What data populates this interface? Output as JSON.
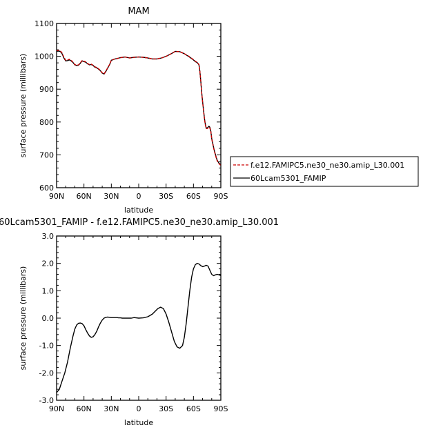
{
  "chart_data": [
    {
      "type": "line",
      "title": "MAM",
      "xlabel": "latitude",
      "ylabel": "surface pressure (millibars)",
      "x_ticks": [
        -90,
        -60,
        -30,
        0,
        30,
        60,
        90
      ],
      "x_tick_labels": [
        "90N",
        "60N",
        "30N",
        "0",
        "30S",
        "60S",
        "90S"
      ],
      "xlim": [
        -90,
        90
      ],
      "ylim": [
        600,
        1100
      ],
      "y_ticks": [
        600,
        700,
        800,
        900,
        1000,
        1100
      ],
      "y_tick_labels": [
        "600",
        "700",
        "800",
        "900",
        "1000",
        "1100"
      ],
      "legend_position": "right",
      "series": [
        {
          "name": "f.e12.FAMIPC5.ne30_ne30.amip_L30.001",
          "color": "#cc0000",
          "dash": "dashed",
          "x": [
            -90,
            -88,
            -86,
            -84,
            -82,
            -80,
            -78,
            -76,
            -74,
            -72,
            -70,
            -68,
            -66,
            -64,
            -62,
            -60,
            -58,
            -56,
            -54,
            -52,
            -50,
            -48,
            -46,
            -44,
            -42,
            -40,
            -38,
            -36,
            -34,
            -32,
            -30,
            -28,
            -26,
            -24,
            -20,
            -15,
            -10,
            -5,
            0,
            5,
            10,
            15,
            20,
            25,
            30,
            35,
            40,
            45,
            50,
            55,
            60,
            62,
            64,
            66,
            67,
            68,
            69,
            70,
            71,
            72,
            73,
            74,
            75,
            76,
            77,
            78,
            79,
            80,
            81,
            82,
            83,
            84,
            85,
            86,
            87,
            88,
            89,
            90
          ],
          "y": [
            1017,
            1018,
            1017,
            1010,
            997,
            988,
            989,
            991,
            988,
            982,
            975,
            973,
            974,
            980,
            987,
            985,
            983,
            978,
            975,
            976,
            973,
            968,
            966,
            962,
            957,
            950,
            947,
            955,
            965,
            975,
            988,
            990,
            992,
            993,
            996,
            998,
            995,
            997,
            998,
            997,
            995,
            992,
            992,
            995,
            1000,
            1007,
            1015,
            1014,
            1008,
            1000,
            990,
            985,
            982,
            975,
            955,
            925,
            890,
            860,
            835,
            810,
            792,
            780,
            780,
            782,
            785,
            782,
            770,
            748,
            735,
            722,
            710,
            700,
            690,
            682,
            677,
            673,
            670,
            668
          ]
        },
        {
          "name": "60Lcam5301_FAMIP",
          "color": "#000000",
          "dash": "solid",
          "x": [
            -90,
            -88,
            -86,
            -84,
            -82,
            -80,
            -78,
            -76,
            -74,
            -72,
            -70,
            -68,
            -66,
            -64,
            -62,
            -60,
            -58,
            -56,
            -54,
            -52,
            -50,
            -48,
            -46,
            -44,
            -42,
            -40,
            -38,
            -36,
            -34,
            -32,
            -30,
            -28,
            -26,
            -24,
            -20,
            -15,
            -10,
            -5,
            0,
            5,
            10,
            15,
            20,
            25,
            30,
            35,
            40,
            45,
            50,
            55,
            60,
            62,
            64,
            66,
            67,
            68,
            69,
            70,
            71,
            72,
            73,
            74,
            75,
            76,
            77,
            78,
            79,
            80,
            81,
            82,
            83,
            84,
            85,
            86,
            87,
            88,
            89,
            90
          ],
          "y": [
            1015,
            1016,
            1015,
            1008,
            995,
            986,
            987,
            989,
            986,
            981,
            974,
            972,
            973,
            979,
            986,
            984,
            982,
            977,
            974,
            975,
            972,
            967,
            965,
            961,
            956,
            949,
            946,
            954,
            964,
            974,
            988,
            990,
            992,
            993,
            996,
            998,
            995,
            997,
            998,
            997,
            995,
            992,
            992,
            995,
            1000,
            1007,
            1015,
            1014,
            1008,
            999,
            989,
            984,
            981,
            974,
            955,
            926,
            891,
            862,
            837,
            812,
            794,
            782,
            782,
            784,
            787,
            784,
            772,
            750,
            737,
            724,
            712,
            702,
            692,
            684,
            679,
            675,
            672,
            670
          ]
        }
      ]
    },
    {
      "type": "line",
      "title": "60Lcam5301_FAMIP  -  f.e12.FAMIPC5.ne30_ne30.amip_L30.001",
      "xlabel": "latitude",
      "ylabel": "surface pressure (millibars)",
      "x_ticks": [
        -90,
        -60,
        -30,
        0,
        30,
        60,
        90
      ],
      "x_tick_labels": [
        "90N",
        "60N",
        "30N",
        "0",
        "30S",
        "60S",
        "90S"
      ],
      "xlim": [
        -90,
        90
      ],
      "ylim": [
        -3.0,
        3.0
      ],
      "y_ticks": [
        -3,
        -2,
        -1,
        0,
        1,
        2,
        3
      ],
      "y_tick_labels": [
        "-3.0",
        "-2.0",
        "-1.0",
        "0.0",
        "1.0",
        "2.0",
        "3.0"
      ],
      "series": [
        {
          "color": "#000000",
          "x": [
            -90,
            -87,
            -84,
            -81,
            -78,
            -75,
            -72,
            -70,
            -68,
            -66,
            -64,
            -62,
            -60,
            -58,
            -56,
            -54,
            -52,
            -50,
            -48,
            -46,
            -44,
            -42,
            -40,
            -38,
            -36,
            -34,
            -32,
            -30,
            -28,
            -26,
            -24,
            -22,
            -20,
            -18,
            -16,
            -14,
            -12,
            -10,
            -8,
            -5,
            0,
            5,
            10,
            15,
            18,
            21,
            24,
            27,
            30,
            33,
            36,
            39,
            42,
            45,
            48,
            50,
            52,
            54,
            56,
            58,
            60,
            62,
            64,
            66,
            68,
            70,
            72,
            74,
            76,
            78,
            80,
            82,
            84,
            86,
            88,
            90
          ],
          "y": [
            -2.72,
            -2.6,
            -2.3,
            -2.0,
            -1.6,
            -1.1,
            -0.65,
            -0.4,
            -0.25,
            -0.19,
            -0.18,
            -0.2,
            -0.28,
            -0.42,
            -0.55,
            -0.65,
            -0.7,
            -0.68,
            -0.6,
            -0.48,
            -0.32,
            -0.18,
            -0.07,
            0.0,
            0.03,
            0.04,
            0.03,
            0.02,
            0.02,
            0.02,
            0.02,
            0.01,
            0.01,
            0.0,
            0.0,
            0.0,
            0.0,
            0.0,
            0.0,
            0.02,
            0.0,
            0.01,
            0.05,
            0.15,
            0.25,
            0.35,
            0.4,
            0.35,
            0.15,
            -0.15,
            -0.5,
            -0.85,
            -1.05,
            -1.1,
            -1.0,
            -0.7,
            -0.2,
            0.4,
            1.0,
            1.5,
            1.8,
            1.95,
            2.0,
            1.98,
            1.92,
            1.88,
            1.9,
            1.93,
            1.9,
            1.75,
            1.6,
            1.55,
            1.58,
            1.6,
            1.58,
            1.55
          ]
        }
      ]
    }
  ]
}
